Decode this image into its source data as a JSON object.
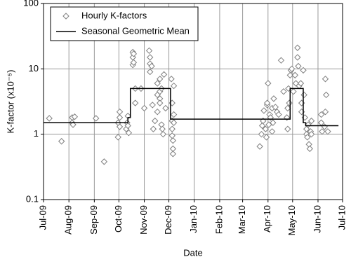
{
  "chart_data": {
    "type": "scatter",
    "x_label": "Date",
    "y_label": "K-factor (x10⁻⁵)",
    "log_y": true,
    "grid": true,
    "legend": "upper left",
    "xlim": [
      0,
      365
    ],
    "xticks": [
      {
        "value": 0,
        "label": "Jul-09"
      },
      {
        "value": 31,
        "label": "Aug-09"
      },
      {
        "value": 62,
        "label": "Sep-09"
      },
      {
        "value": 92,
        "label": "Oct-09"
      },
      {
        "value": 123,
        "label": "Nov-09"
      },
      {
        "value": 153,
        "label": "Dec-09"
      },
      {
        "value": 184,
        "label": "Jan-10"
      },
      {
        "value": 215,
        "label": "Feb-10"
      },
      {
        "value": 243,
        "label": "Mar-10"
      },
      {
        "value": 274,
        "label": "Apr-10"
      },
      {
        "value": 304,
        "label": "May-10"
      },
      {
        "value": 335,
        "label": "Jun-10"
      },
      {
        "value": 365,
        "label": "Jul-10"
      }
    ],
    "ylim": [
      0.1,
      100
    ],
    "yticks": [
      0.1,
      1,
      10,
      100
    ],
    "series": [
      {
        "name": "Hourly K-factors",
        "type": "scatter",
        "color": "#808080",
        "x": [
          7,
          22,
          35,
          35,
          36,
          38,
          64,
          74,
          91,
          91,
          93,
          93,
          93,
          101,
          102,
          103,
          104,
          103,
          109,
          109,
          109,
          110,
          110,
          112,
          112,
          119,
          123,
          129,
          130,
          130,
          130,
          132,
          133,
          134,
          136,
          139,
          139,
          139,
          142,
          142,
          142,
          142,
          144,
          144,
          145,
          146,
          147,
          149,
          156,
          157,
          157,
          157,
          157,
          158,
          158,
          158,
          159,
          159,
          159,
          264,
          266,
          267,
          268,
          269,
          271,
          272,
          273,
          273,
          274,
          275,
          276,
          277,
          279,
          279,
          280,
          281,
          283,
          285,
          287,
          290,
          293,
          297,
          298,
          298,
          299,
          300,
          301,
          302,
          303,
          305,
          307,
          308,
          310,
          310,
          311,
          312,
          314,
          315,
          315,
          317,
          318,
          319,
          321,
          321,
          322,
          323,
          324,
          325,
          326,
          327,
          327,
          339,
          339,
          340,
          343,
          344,
          344,
          345,
          347
        ],
        "values": [
          1.75,
          0.78,
          1.8,
          1.5,
          1.4,
          1.85,
          1.75,
          0.38,
          0.9,
          1.5,
          1.3,
          1.8,
          2.2,
          1.2,
          1.5,
          1.9,
          1.05,
          1.35,
          15,
          18,
          11.5,
          12.5,
          17,
          3,
          5,
          5,
          2.5,
          19,
          15,
          12,
          9,
          11,
          2.8,
          1.2,
          1.6,
          6,
          4,
          2.2,
          7,
          4.5,
          3.5,
          3,
          5,
          1.4,
          1.2,
          1,
          8.2,
          2.5,
          7,
          3,
          1.6,
          1.2,
          0.95,
          0.8,
          0.6,
          0.5,
          5.5,
          2,
          1.5,
          0.65,
          1,
          1.35,
          1.6,
          2.3,
          1.2,
          0.9,
          2.8,
          3,
          6,
          1.4,
          2,
          1.8,
          1.1,
          2.5,
          1.5,
          3.5,
          2.6,
          2.2,
          2,
          13.5,
          4.5,
          1.8,
          1.2,
          2.5,
          5,
          3,
          8,
          9.5,
          10,
          4.5,
          8,
          6,
          21,
          15,
          11,
          5.5,
          6,
          3,
          2.2,
          9.5,
          4,
          1.8,
          1.2,
          1,
          0.9,
          1.4,
          0.7,
          0.6,
          1.1,
          1.6,
          1,
          1.5,
          2,
          1.1,
          1.3,
          2.2,
          7,
          4,
          1.1
        ]
      },
      {
        "name": "Seasonal Geometric Mean",
        "type": "line",
        "color": "#000000",
        "x": [
          0,
          103,
          103,
          106,
          106,
          155,
          155,
          301,
          301,
          317,
          317,
          320,
          320,
          360
        ],
        "values": [
          1.5,
          1.5,
          1.8,
          1.8,
          5,
          5,
          1.7,
          1.7,
          5,
          5,
          1.5,
          1.5,
          1.35,
          1.35
        ]
      }
    ]
  }
}
